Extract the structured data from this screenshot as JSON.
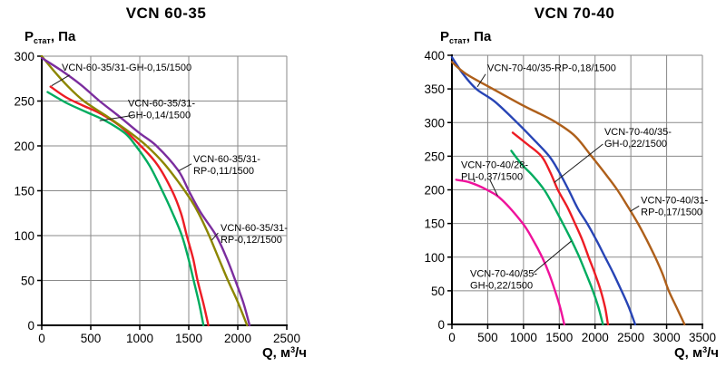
{
  "chart_data": [
    {
      "type": "line",
      "title": "VCN 60-35",
      "ylabel": {
        "main": "P",
        "sub": "стат",
        "rest": ", Па"
      },
      "xlabel": {
        "main": "Q, м",
        "sup": "3",
        "rest": "/ч"
      },
      "xlim": [
        0,
        2500
      ],
      "ylim": [
        0,
        300
      ],
      "xticks": [
        0,
        500,
        1000,
        1500,
        2000,
        2500
      ],
      "yticks": [
        0,
        50,
        100,
        150,
        200,
        250,
        300
      ],
      "grid": true,
      "grid_color": "#8a8a8a",
      "series": [
        {
          "name": "VCN-60-35/31-GH-0,15/1500",
          "color": "#ED1C24",
          "points": [
            [
              90,
              266
            ],
            [
              250,
              254
            ],
            [
              420,
              245
            ],
            [
              600,
              236
            ],
            [
              800,
              222
            ],
            [
              1010,
              200
            ],
            [
              1180,
              179
            ],
            [
              1330,
              150
            ],
            [
              1420,
              125
            ],
            [
              1480,
              100
            ],
            [
              1545,
              74
            ],
            [
              1590,
              50
            ],
            [
              1650,
              24
            ],
            [
              1700,
              0
            ]
          ]
        },
        {
          "name": "VCN-60-35/31-GH-0,14/1500",
          "color": "#00AC5F",
          "points": [
            [
              60,
              260
            ],
            [
              250,
              248
            ],
            [
              450,
              238
            ],
            [
              650,
              228
            ],
            [
              850,
              214
            ],
            [
              960,
              200
            ],
            [
              1100,
              178
            ],
            [
              1230,
              150
            ],
            [
              1335,
              125
            ],
            [
              1430,
              100
            ],
            [
              1495,
              75
            ],
            [
              1550,
              50
            ],
            [
              1605,
              25
            ],
            [
              1650,
              0
            ]
          ]
        },
        {
          "name": "VCN-60-35/31-RP-0,12/1500",
          "color": "#8C8600",
          "points": [
            [
              0,
              300
            ],
            [
              120,
              284
            ],
            [
              270,
              266
            ],
            [
              430,
              250
            ],
            [
              650,
              234
            ],
            [
              900,
              215
            ],
            [
              1070,
              200
            ],
            [
              1250,
              180
            ],
            [
              1400,
              159
            ],
            [
              1520,
              140
            ],
            [
              1600,
              125
            ],
            [
              1700,
              102
            ],
            [
              1800,
              76
            ],
            [
              1900,
              50
            ],
            [
              2000,
              26
            ],
            [
              2095,
              0
            ]
          ]
        },
        {
          "name": "VCN-60-35/31-RP-0,11/1500",
          "color": "#7B2D9E",
          "points": [
            [
              0,
              298
            ],
            [
              200,
              284
            ],
            [
              400,
              268
            ],
            [
              590,
              250
            ],
            [
              800,
              232
            ],
            [
              1000,
              214
            ],
            [
              1170,
              200
            ],
            [
              1390,
              173
            ],
            [
              1500,
              150
            ],
            [
              1620,
              126
            ],
            [
              1780,
              100
            ],
            [
              1890,
              74
            ],
            [
              1975,
              50
            ],
            [
              2060,
              24
            ],
            [
              2120,
              0
            ]
          ]
        }
      ],
      "annotations": [
        {
          "lines": [
            "VCN-60-35/31-GH-0,15/1500"
          ],
          "x": 204,
          "y": 294,
          "leader": [
            [
              285,
              279
            ],
            [
              100,
              267
            ]
          ]
        },
        {
          "lines": [
            "VCN-60-35/31-",
            "GH-0,14/1500"
          ],
          "x": 880,
          "y": 254,
          "leader": [
            [
              926,
              234
            ],
            [
              590,
              228
            ]
          ]
        },
        {
          "lines": [
            "VCN-60-35/31-",
            "RP-0,11/1500"
          ],
          "x": 1546,
          "y": 192,
          "leader": [
            [
              1528,
              180
            ],
            [
              1395,
              172
            ]
          ]
        },
        {
          "lines": [
            "VCN-60-35/31-",
            "RP-0,12/1500"
          ],
          "x": 1824,
          "y": 115,
          "leader": [
            [
              1800,
              103
            ],
            [
              1735,
              95
            ]
          ]
        }
      ]
    },
    {
      "type": "line",
      "title": "VCN 70-40",
      "ylabel": {
        "main": "P",
        "sub": "стат",
        "rest": ", Па"
      },
      "xlabel": {
        "main": "Q, м",
        "sup": "3",
        "rest": "/ч"
      },
      "xlim": [
        0,
        3500
      ],
      "ylim": [
        0,
        400
      ],
      "xticks": [
        0,
        500,
        1000,
        1500,
        2000,
        2500,
        3000,
        3500
      ],
      "yticks": [
        0,
        50,
        100,
        150,
        200,
        250,
        300,
        350,
        400
      ],
      "grid": true,
      "grid_color": "#8a8a8a",
      "series": [
        {
          "name": "VCN-70-40/28-РЦ-0,37/1500",
          "color": "#EF129B",
          "points": [
            [
              60,
              215
            ],
            [
              250,
              211
            ],
            [
              490,
              200
            ],
            [
              700,
              185
            ],
            [
              990,
              150
            ],
            [
              1130,
              126
            ],
            [
              1260,
              100
            ],
            [
              1360,
              75
            ],
            [
              1440,
              50
            ],
            [
              1510,
              26
            ],
            [
              1570,
              0
            ]
          ]
        },
        {
          "name": "VCN-70-40/35-GH-0,22/1500",
          "color": "#00AC5F",
          "points": [
            [
              830,
              258
            ],
            [
              900,
              248
            ],
            [
              1000,
              235
            ],
            [
              1130,
              221
            ],
            [
              1290,
              200
            ],
            [
              1420,
              176
            ],
            [
              1550,
              150
            ],
            [
              1670,
              125
            ],
            [
              1780,
              100
            ],
            [
              1880,
              74
            ],
            [
              1970,
              50
            ],
            [
              2045,
              26
            ],
            [
              2110,
              0
            ]
          ]
        },
        {
          "name": "VCN-70-40/35-GH-0,22/1500",
          "color": "#ED1C24",
          "points": [
            [
              850,
              285
            ],
            [
              1050,
              268
            ],
            [
              1250,
              250
            ],
            [
              1370,
              227
            ],
            [
              1480,
              200
            ],
            [
              1610,
              175
            ],
            [
              1720,
              150
            ],
            [
              1820,
              126
            ],
            [
              1910,
              100
            ],
            [
              2000,
              75
            ],
            [
              2080,
              50
            ],
            [
              2140,
              25
            ],
            [
              2180,
              0
            ]
          ]
        },
        {
          "name": "VCN-70-40/35-RP-0,18/1500",
          "color": "#2744B5",
          "points": [
            [
              0,
              397
            ],
            [
              150,
              373
            ],
            [
              340,
              350
            ],
            [
              600,
              331
            ],
            [
              910,
              300
            ],
            [
              1150,
              274
            ],
            [
              1360,
              250
            ],
            [
              1490,
              228
            ],
            [
              1630,
              200
            ],
            [
              1760,
              172
            ],
            [
              1890,
              150
            ],
            [
              2020,
              125
            ],
            [
              2140,
              100
            ],
            [
              2260,
              75
            ],
            [
              2370,
              50
            ],
            [
              2470,
              26
            ],
            [
              2560,
              0
            ]
          ]
        },
        {
          "name": "VCN-70-40/31-RP-0,17/1500",
          "color": "#AE5F1A",
          "points": [
            [
              0,
              390
            ],
            [
              200,
              372
            ],
            [
              570,
              350
            ],
            [
              1000,
              325
            ],
            [
              1230,
              313
            ],
            [
              1460,
              300
            ],
            [
              1720,
              280
            ],
            [
              1950,
              250
            ],
            [
              2150,
              223
            ],
            [
              2310,
              200
            ],
            [
              2470,
              173
            ],
            [
              2600,
              150
            ],
            [
              2720,
              126
            ],
            [
              2840,
              100
            ],
            [
              2940,
              76
            ],
            [
              3030,
              50
            ],
            [
              3140,
              25
            ],
            [
              3250,
              0
            ]
          ]
        }
      ],
      "annotations": [
        {
          "lines": [
            "VCN-70-40/35-RP-0,18/1500"
          ],
          "x": 495,
          "y": 390,
          "leader": [
            [
              470,
              372
            ],
            [
              355,
              353
            ]
          ]
        },
        {
          "lines": [
            "VCN-70-40/35-",
            "GH-0,22/1500"
          ],
          "x": 2130,
          "y": 295,
          "leader": [
            [
              2110,
              268
            ],
            [
              1430,
              211
            ]
          ]
        },
        {
          "lines": [
            "VCN-70-40/28-",
            "РЦ-0,37/1500"
          ],
          "x": 127,
          "y": 246,
          "leader": [
            [
              530,
              215
            ],
            [
              640,
              191
            ]
          ]
        },
        {
          "lines": [
            "VCN-70-40/31-",
            "RP-0,17/1500"
          ],
          "x": 2640,
          "y": 193,
          "leader": [
            [
              2615,
              176
            ],
            [
              2490,
              168
            ]
          ]
        },
        {
          "lines": [
            "VCN-70-40/35-",
            "GH-0,22/1500"
          ],
          "x": 254,
          "y": 84,
          "leader": [
            [
              1140,
              77
            ],
            [
              1670,
              124
            ]
          ]
        }
      ]
    }
  ]
}
